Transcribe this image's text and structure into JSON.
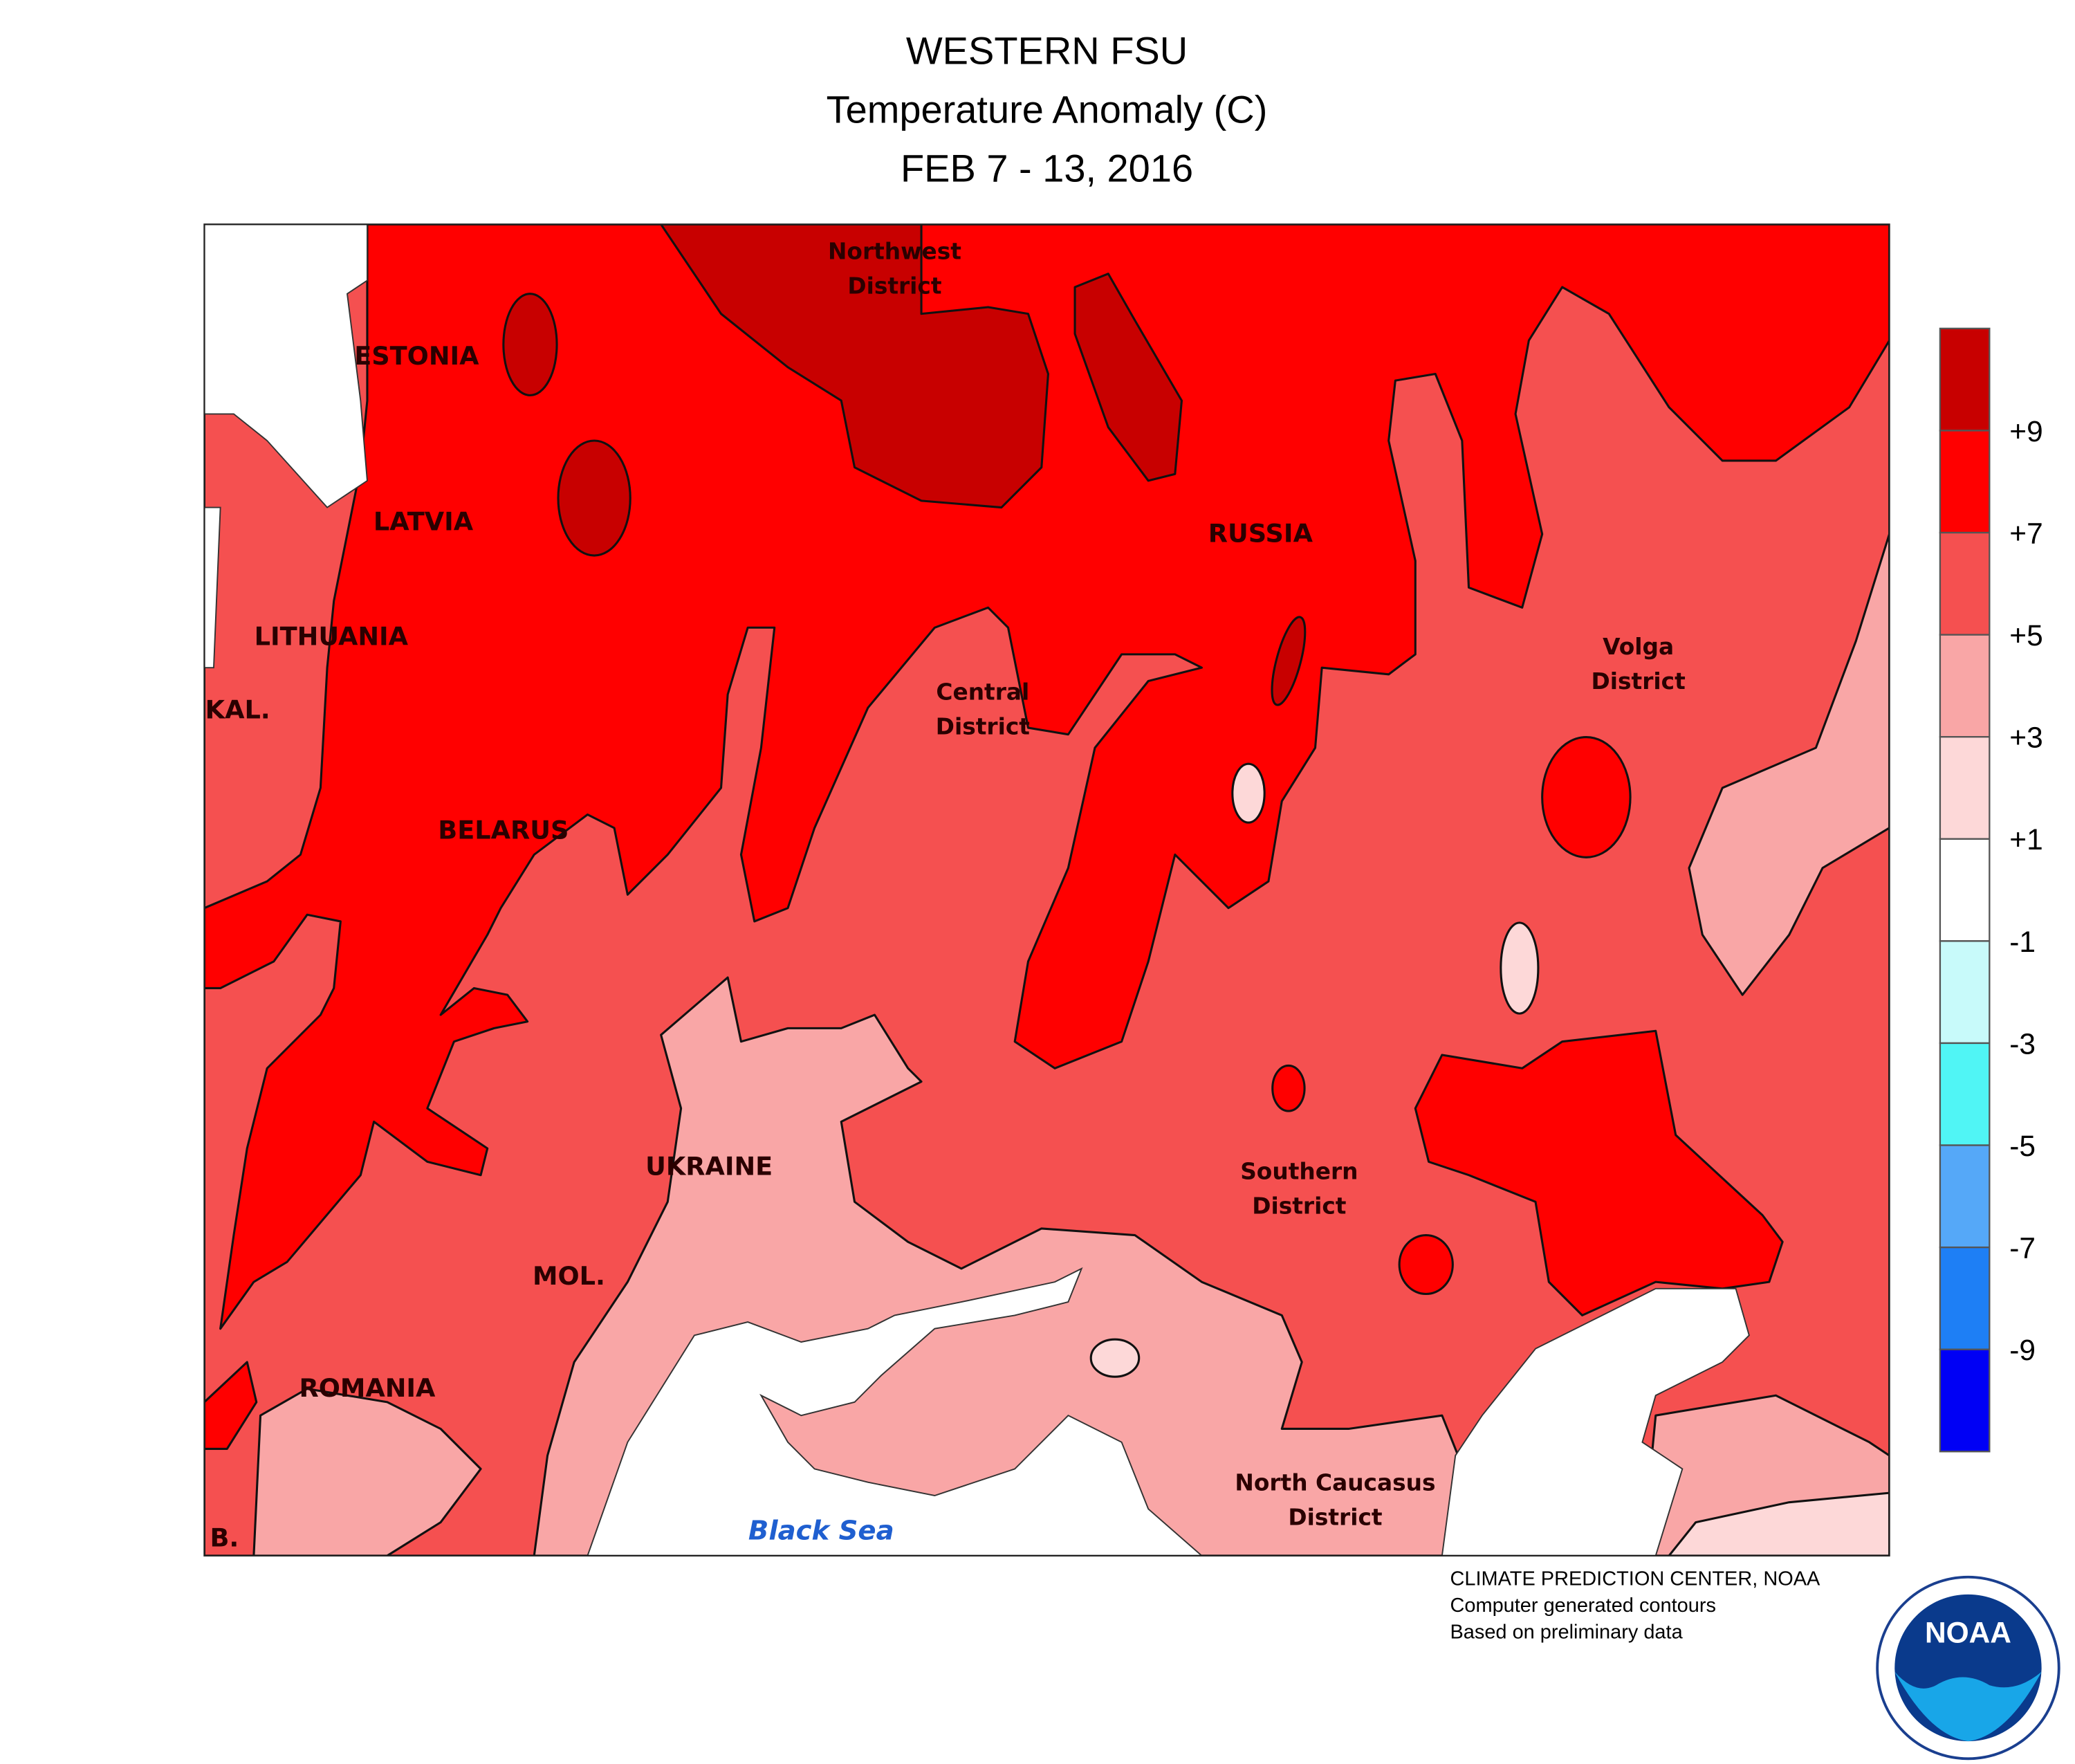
{
  "header": {
    "title_lines": [
      "WESTERN FSU",
      "Temperature Anomaly (C)",
      "FEB 7 - 13, 2016"
    ]
  },
  "map": {
    "labels": [
      "ESTONIA",
      "LATVIA",
      "LITHUANIA",
      "KAL.",
      "BELARUS",
      "UKRAINE",
      "MOL.",
      "ROMANIA",
      "B.",
      "RUSSIA"
    ],
    "districts": [
      [
        "Northwest",
        "District"
      ],
      [
        "Central",
        "District"
      ],
      [
        "Volga",
        "District"
      ],
      [
        "Southern",
        "District"
      ],
      [
        "North Caucasus",
        "District"
      ]
    ],
    "sea": "Black Sea"
  },
  "legend": {
    "colors": [
      "#c80000",
      "#ff0000",
      "#f55050",
      "#f9a6a6",
      "#fdd8d8",
      "#ffffff",
      "#c8fafa",
      "#50f5f5",
      "#55a8f8",
      "#1e7ff5",
      "#0000f5"
    ],
    "labels": [
      "+9",
      "+7",
      "+5",
      "+3",
      "+1",
      "-1",
      "-3",
      "-5",
      "-7",
      "-9"
    ]
  },
  "credits": [
    "CLIMATE PREDICTION CENTER, NOAA",
    "Computer generated contours",
    "Based on preliminary data"
  ],
  "logo": "NOAA"
}
